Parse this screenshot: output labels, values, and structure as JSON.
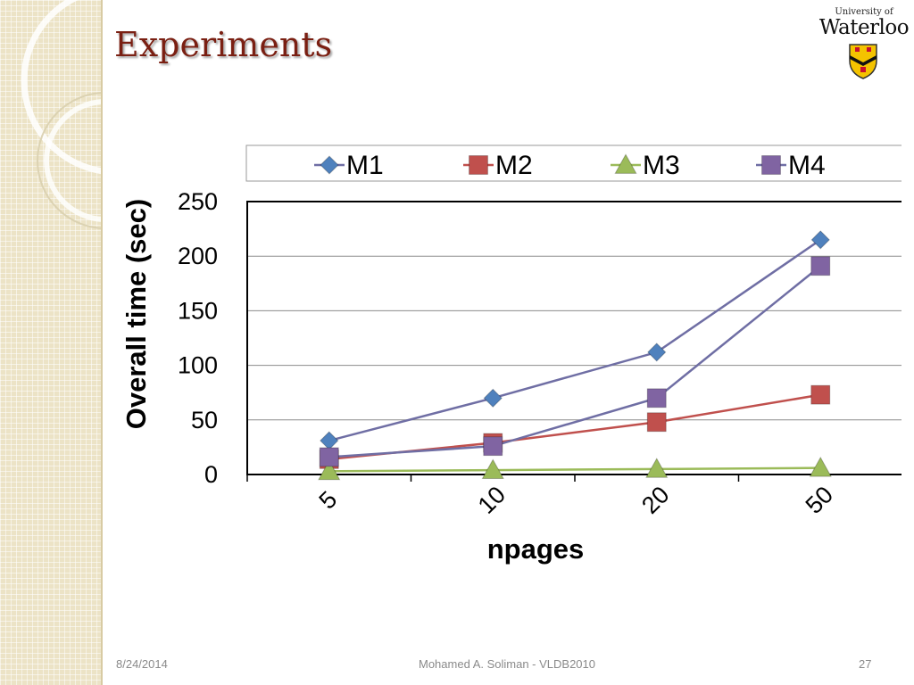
{
  "slide": {
    "title": "Experiments",
    "logo_small": "University of",
    "logo_big": "Waterloo"
  },
  "footer": {
    "date": "8/24/2014",
    "author": "Mohamed A. Soliman - VLDB2010",
    "page": "27"
  },
  "colors": {
    "title": "#7a1f12",
    "m1": "#4f81bd",
    "m2": "#c0504d",
    "m3": "#9bbb59",
    "m4": "#8064a2",
    "m1_line": "#6f6ea4",
    "m4_line": "#6f6ea4"
  },
  "chart_data": {
    "type": "line",
    "categories": [
      "5",
      "10",
      "20",
      "50"
    ],
    "series": [
      {
        "name": "M1",
        "values": [
          31,
          70,
          112,
          215
        ],
        "marker": "diamond"
      },
      {
        "name": "M2",
        "values": [
          14,
          29,
          48,
          73
        ],
        "marker": "square"
      },
      {
        "name": "M3",
        "values": [
          3,
          4,
          5,
          6
        ],
        "marker": "triangle"
      },
      {
        "name": "M4",
        "values": [
          16,
          26,
          70,
          191
        ],
        "marker": "square"
      }
    ],
    "xlabel": "npages",
    "ylabel": "Overall time (sec)",
    "ylim": [
      0,
      250
    ],
    "yticks": [
      0,
      50,
      100,
      150,
      200,
      250
    ],
    "grid": true,
    "legend": "top"
  }
}
